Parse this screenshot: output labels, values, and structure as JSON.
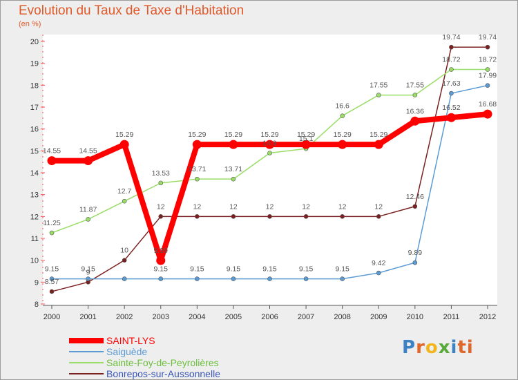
{
  "chart_data": {
    "type": "line",
    "title": "Evolution du Taux de Taxe d'Habitation",
    "subtitle": "(en %)",
    "x": [
      "2000",
      "2001",
      "2002",
      "2003",
      "2004",
      "2005",
      "2006",
      "2007",
      "2008",
      "2009",
      "2010",
      "2011",
      "2012"
    ],
    "ylim": [
      8,
      20
    ],
    "yticks": [
      8,
      9,
      10,
      11,
      12,
      13,
      14,
      15,
      16,
      17,
      18,
      19,
      20
    ],
    "grid": false,
    "legend_position": "bottom-left",
    "series": [
      {
        "name": "SAINT-LYS",
        "color": "#ff0000",
        "values": [
          14.55,
          14.55,
          15.29,
          9.99,
          15.29,
          15.29,
          15.29,
          15.29,
          15.29,
          15.29,
          16.36,
          16.52,
          16.68
        ],
        "labels": [
          "14.55",
          "14.55",
          "15.29",
          "9.99",
          "15.29",
          "15.29",
          "15.29",
          "15.29",
          "15.29",
          "15.29",
          "16.36",
          "16.52",
          "16.68"
        ]
      },
      {
        "name": "Saiguède",
        "color": "#5b9bd5",
        "values": [
          9.15,
          9.15,
          9.15,
          9.15,
          9.15,
          9.15,
          9.15,
          9.15,
          9.15,
          9.42,
          9.89,
          17.63,
          17.99
        ],
        "labels": [
          "9.15",
          "9.15",
          "",
          "9.15",
          "9.15",
          "9.15",
          "9.15",
          "9.15",
          "9.15",
          "9.42",
          "9.89",
          "17.63",
          "17.99"
        ]
      },
      {
        "name": "Sainte-Foy-de-Peyrolières",
        "color": "#99dd66",
        "values": [
          11.25,
          11.87,
          12.7,
          13.53,
          13.71,
          13.71,
          14.9,
          15.1,
          16.6,
          17.55,
          17.55,
          18.72,
          18.72
        ],
        "labels": [
          "11.25",
          "11.87",
          "12.7",
          "13.53",
          "13.71",
          "13.71",
          "14.9",
          "15.1",
          "16.6",
          "17.55",
          "17.55",
          "18.72",
          "18.72"
        ]
      },
      {
        "name": "Bonrepos-sur-Aussonnelle",
        "color": "#7a1f1f",
        "values": [
          8.57,
          9.0,
          10.0,
          12.0,
          12.0,
          12.0,
          12.0,
          12.0,
          12.0,
          12.0,
          12.46,
          19.74,
          19.74
        ],
        "labels": [
          "8.57",
          "9",
          "10",
          "12",
          "12",
          "12",
          "12",
          "12",
          "12",
          "12",
          "12.46",
          "19.74",
          "19.74"
        ]
      }
    ]
  },
  "logo": {
    "p1": "P",
    "p2": "r",
    "p3": "o",
    "p4": "x",
    "p5": "i",
    "p6": "ti"
  }
}
